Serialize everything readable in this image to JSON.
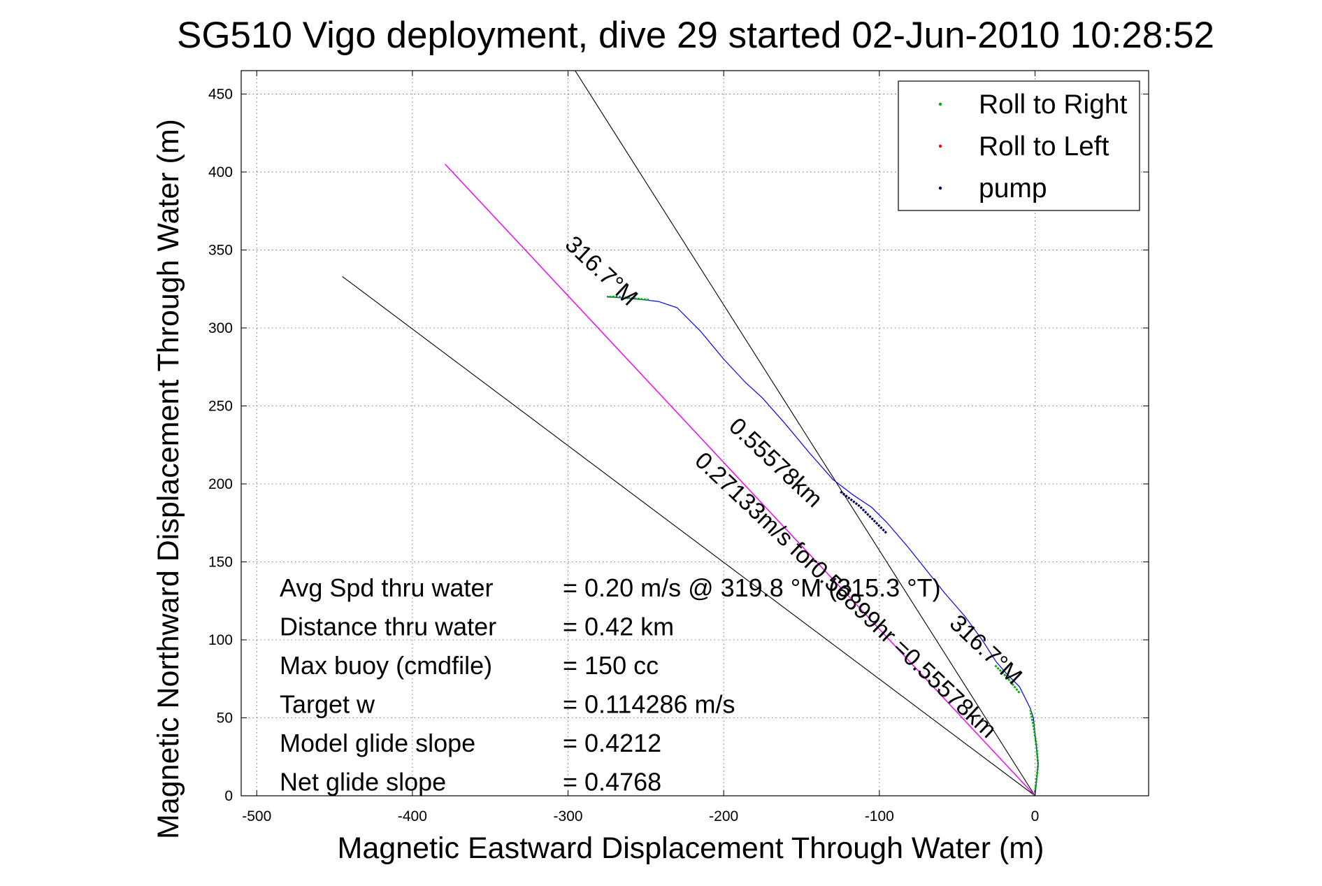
{
  "chart_data": {
    "type": "line",
    "title": "SG510 Vigo deployment, dive 29 started 02-Jun-2010 10:28:52",
    "xlabel": "Magnetic Eastward Displacement Through Water (m)",
    "ylabel": "Magnetic Northward Displacement Through Water (m)",
    "xlim": [
      -510,
      73
    ],
    "ylim": [
      0,
      465
    ],
    "xticks": [
      -500,
      -400,
      -300,
      -200,
      -100,
      0
    ],
    "yticks": [
      0,
      50,
      100,
      150,
      200,
      250,
      300,
      350,
      400,
      450
    ],
    "grid": true,
    "legend_position": "top-right",
    "colors": {
      "track": "#0000ff",
      "roll_right": "#00aa00",
      "roll_left": "#ff0000",
      "pump": "#000066",
      "heading_line": "#ff00ff",
      "reference_lines": "#000000"
    },
    "legend": [
      {
        "label": "Roll to Right",
        "color": "#00aa00"
      },
      {
        "label": "Roll to Left",
        "color": "#ff0000"
      },
      {
        "label": "pump",
        "color": "#000066"
      }
    ],
    "series": [
      {
        "kind": "track",
        "color": "#0000ff",
        "x": [
          0,
          1,
          2,
          1,
          0,
          -1,
          -3,
          -6,
          -10,
          -18,
          -25,
          -34,
          -45,
          -58,
          -70,
          -82,
          -95,
          -105,
          -117,
          -130,
          -145,
          -160,
          -175,
          -186,
          -200,
          -215,
          -230,
          -242,
          -251,
          -262,
          -275
        ],
        "y": [
          0,
          10,
          20,
          30,
          40,
          50,
          56,
          62,
          70,
          78,
          86,
          100,
          115,
          130,
          145,
          160,
          175,
          185,
          193,
          203,
          220,
          238,
          255,
          265,
          280,
          298,
          313,
          317,
          318,
          319,
          320
        ]
      },
      {
        "kind": "roll_right",
        "color": "#00aa00",
        "segments": [
          {
            "x": [
              0,
              2,
              1,
              -1,
              -3
            ],
            "y": [
              2,
              20,
              32,
              45,
              55
            ]
          },
          {
            "x": [
              -10,
              -18,
              -26
            ],
            "y": [
              66,
              76,
              84
            ]
          },
          {
            "x": [
              -248,
              -258,
              -268,
              -275
            ],
            "y": [
              318,
              319,
              320,
              320
            ]
          }
        ]
      },
      {
        "kind": "pump",
        "color": "#000066",
        "segments": [
          {
            "x": [
              -125,
              -113,
              -103,
              -95
            ],
            "y": [
              195,
              186,
              176,
              168
            ]
          }
        ]
      },
      {
        "kind": "heading_line",
        "color": "#ff00ff",
        "x": [
          0,
          -379
        ],
        "y": [
          0,
          405
        ]
      },
      {
        "kind": "reference_line",
        "color": "#000000",
        "x": [
          0,
          -379
        ],
        "y": [
          0,
          405
        ]
      },
      {
        "kind": "reference_line",
        "color": "#000000",
        "x": [
          0,
          -305
        ],
        "y": [
          0,
          480
        ]
      },
      {
        "kind": "reference_line",
        "color": "#000000",
        "x": [
          0,
          -445
        ],
        "y": [
          0,
          333
        ]
      }
    ],
    "annotations": [
      {
        "text": "316.7°M",
        "x": -282,
        "y": 333,
        "angle_deg": 136.7
      },
      {
        "text": "0.55578km",
        "x": -170,
        "y": 210,
        "angle_deg": 136.7
      },
      {
        "text": "0.27133m/s for0.56899hr =0.55578km",
        "x": -125,
        "y": 125,
        "angle_deg": 136.7
      },
      {
        "text": "316.7°M",
        "x": -35,
        "y": 90,
        "angle_deg": 136.7
      }
    ],
    "stats": [
      {
        "label": "Avg Spd thru water",
        "value": "=  0.20 m/s @ 319.8 °M (315.3 °T)"
      },
      {
        "label": "Distance thru water",
        "value": "=  0.42 km"
      },
      {
        "label": "Max buoy (cmdfile)",
        "value": "= 150 cc"
      },
      {
        "label": "Target w",
        "value": "= 0.114286 m/s"
      },
      {
        "label": "Model glide slope",
        "value": "= 0.4212"
      },
      {
        "label": "Net glide slope",
        "value": "= 0.4768"
      }
    ]
  }
}
